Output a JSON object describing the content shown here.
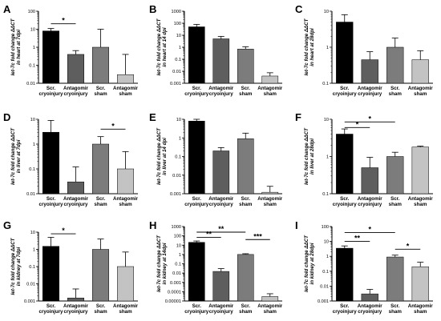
{
  "chart_data": [
    {
      "letter": "A",
      "type": "bar",
      "ylabel_lines": [
        "let-7c fold change ΔΔCT",
        "in heart at 7dpi"
      ],
      "ylim": [
        0.01,
        100
      ],
      "log": true,
      "yticks": [
        "0.01",
        "0.1",
        "1",
        "10",
        "100"
      ],
      "categories": [
        [
          "Scr.",
          "cryoinjury"
        ],
        [
          "Antagomir",
          "cryoinjury"
        ],
        [
          "Scr.",
          "sham"
        ],
        [
          "Antagomir",
          "sham"
        ]
      ],
      "values": [
        8,
        0.4,
        1,
        0.03
      ],
      "errors": [
        11,
        0.65,
        10,
        0.4
      ],
      "sig": [
        {
          "from": 0,
          "to": 1,
          "label": "*",
          "y": 20
        }
      ]
    },
    {
      "letter": "B",
      "type": "bar",
      "ylabel_lines": [
        "let-7c fold change ΔΔCT",
        "in heart at 14 dpi"
      ],
      "ylim": [
        0.001,
        1000
      ],
      "log": true,
      "yticks": [
        "0.001",
        "0.01",
        "0.1",
        "1",
        "10",
        "100",
        "1000"
      ],
      "categories": [
        [
          "Scr.",
          "cryoinjury"
        ],
        [
          "Antagomir",
          "cryoinjury"
        ],
        [
          "Scr.",
          "sham"
        ],
        [
          "Antagomir",
          "sham"
        ]
      ],
      "values": [
        50,
        5,
        0.7,
        0.004
      ],
      "errors": [
        80,
        8,
        1.1,
        0.0075
      ],
      "sig": []
    },
    {
      "letter": "C",
      "type": "bar",
      "ylabel_lines": [
        "let-7c fold change ΔΔCT",
        "in heart at 28dpi"
      ],
      "ylim": [
        0.1,
        10
      ],
      "log": true,
      "yticks": [
        "0.1",
        "1",
        "10"
      ],
      "categories": [
        [
          "Scr.",
          "cryoinjury"
        ],
        [
          "Antagomir",
          "cryoinjury"
        ],
        [
          "Scr.",
          "sham"
        ],
        [
          "Antagomir",
          "sham"
        ]
      ],
      "values": [
        5,
        0.45,
        1,
        0.45
      ],
      "errors": [
        8,
        0.75,
        1.8,
        0.8
      ],
      "sig": []
    },
    {
      "letter": "D",
      "type": "bar",
      "ylabel_lines": [
        "let-7c fold change ΔΔCT",
        "in liver at 7dpi"
      ],
      "ylim": [
        0.01,
        10
      ],
      "log": true,
      "yticks": [
        "0.01",
        "0.1",
        "1",
        "10"
      ],
      "categories": [
        [
          "Scr.",
          "cryoinjury"
        ],
        [
          "Antagomir",
          "cryoinjury"
        ],
        [
          "Scr.",
          "sham"
        ],
        [
          "Antagomir",
          "sham"
        ]
      ],
      "values": [
        3,
        0.03,
        1,
        0.1
      ],
      "errors": [
        9,
        0.12,
        2,
        0.5
      ],
      "sig": [
        {
          "from": 2,
          "to": 3,
          "label": "*",
          "y": 4
        }
      ]
    },
    {
      "letter": "E",
      "type": "bar",
      "ylabel_lines": [
        "let-7c fold change ΔΔCT",
        "in liver at 14 dpi"
      ],
      "ylim": [
        0.001,
        10
      ],
      "log": true,
      "yticks": [
        "0.001",
        "0.01",
        "0.1",
        "1",
        "10"
      ],
      "categories": [
        [
          "Scr.",
          "cryoinjury"
        ],
        [
          "Antagomir",
          "cryoinjury"
        ],
        [
          "Scr.",
          "sham"
        ],
        [
          "Antagomir",
          "sham"
        ]
      ],
      "values": [
        8,
        0.2,
        0.9,
        0.0012
      ],
      "errors": [
        10,
        0.3,
        1.8,
        0.0025
      ],
      "sig": []
    },
    {
      "letter": "F",
      "type": "bar",
      "ylabel_lines": [
        "let-7c fold change ΔΔCT",
        "in liver at 28dpi"
      ],
      "ylim": [
        0.1,
        10
      ],
      "log": true,
      "yticks": [
        "0.1",
        "1",
        "10"
      ],
      "categories": [
        [
          "Scr.",
          "cryoinjury"
        ],
        [
          "Antagomir",
          "cryoinjury"
        ],
        [
          "Scr.",
          "sham"
        ],
        [
          "Antagomir",
          "sham"
        ]
      ],
      "values": [
        4,
        0.5,
        1,
        1.8
      ],
      "errors": [
        5.5,
        0.95,
        1.3,
        1.9
      ],
      "sig": [
        {
          "from": 0,
          "to": 1,
          "label": "*",
          "y": 6
        },
        {
          "from": 0,
          "to": 2,
          "label": "*",
          "y": 8.5
        }
      ]
    },
    {
      "letter": "G",
      "type": "bar",
      "ylabel_lines": [
        "let-7c fold change ΔΔCT",
        "in kidney at 7dpi"
      ],
      "ylim": [
        0.001,
        10
      ],
      "log": true,
      "yticks": [
        "0.001",
        "0.01",
        "0.1",
        "1",
        "10"
      ],
      "categories": [
        [
          "Scr.",
          "cryoinjury"
        ],
        [
          "Antagomir",
          "cryoinjury"
        ],
        [
          "Scr.",
          "sham"
        ],
        [
          "Antagomir",
          "sham"
        ]
      ],
      "values": [
        1.5,
        0.0015,
        1,
        0.1
      ],
      "errors": [
        5,
        0.005,
        4,
        0.7
      ],
      "sig": [
        {
          "from": 0,
          "to": 1,
          "label": "*",
          "y": 8
        }
      ]
    },
    {
      "letter": "H",
      "type": "bar",
      "ylabel_lines": [
        "let-7c fold change ΔΔCT",
        "in kidney at 14dpi"
      ],
      "ylim": [
        1e-05,
        1000
      ],
      "log": true,
      "yticks": [
        "0.00001",
        "0.0001",
        "0.001",
        "0.01",
        "0.1",
        "1",
        "10",
        "100",
        "1000"
      ],
      "categories": [
        [
          "Scr.",
          "cryoinjury"
        ],
        [
          "Antagomir",
          "cryoinjury"
        ],
        [
          "Scr.",
          "sham"
        ],
        [
          "Antagomir",
          "sham"
        ]
      ],
      "values": [
        20,
        0.015,
        1,
        3e-05
      ],
      "errors": [
        28,
        0.03,
        1.2,
        6e-05
      ],
      "sig": [
        {
          "from": 0,
          "to": 1,
          "label": "**",
          "y": 70
        },
        {
          "from": 0,
          "to": 2,
          "label": "**",
          "y": 250
        },
        {
          "from": 2,
          "to": 3,
          "label": "***",
          "y": 40
        }
      ]
    },
    {
      "letter": "I",
      "type": "bar",
      "ylabel_lines": [
        "let-7c fold change ΔΔCT",
        "in kidney at 28dpi"
      ],
      "ylim": [
        0.001,
        100
      ],
      "log": true,
      "yticks": [
        "0.001",
        "0.01",
        "0.1",
        "1",
        "10",
        "100"
      ],
      "categories": [
        [
          "Scr.",
          "cryoinjury"
        ],
        [
          "Antagomir",
          "cryoinjury"
        ],
        [
          "Scr.",
          "sham"
        ],
        [
          "Antagomir",
          "sham"
        ]
      ],
      "values": [
        3.5,
        0.003,
        0.9,
        0.2
      ],
      "errors": [
        5,
        0.006,
        1.2,
        0.4
      ],
      "sig": [
        {
          "from": 0,
          "to": 1,
          "label": "**",
          "y": 10
        },
        {
          "from": 0,
          "to": 2,
          "label": "*",
          "y": 40
        },
        {
          "from": 2,
          "to": 3,
          "label": "*",
          "y": 3
        }
      ]
    }
  ],
  "bar_colors": [
    "#000000",
    "#5e5e5e",
    "#7c7c7c",
    "#c3c3c3"
  ]
}
